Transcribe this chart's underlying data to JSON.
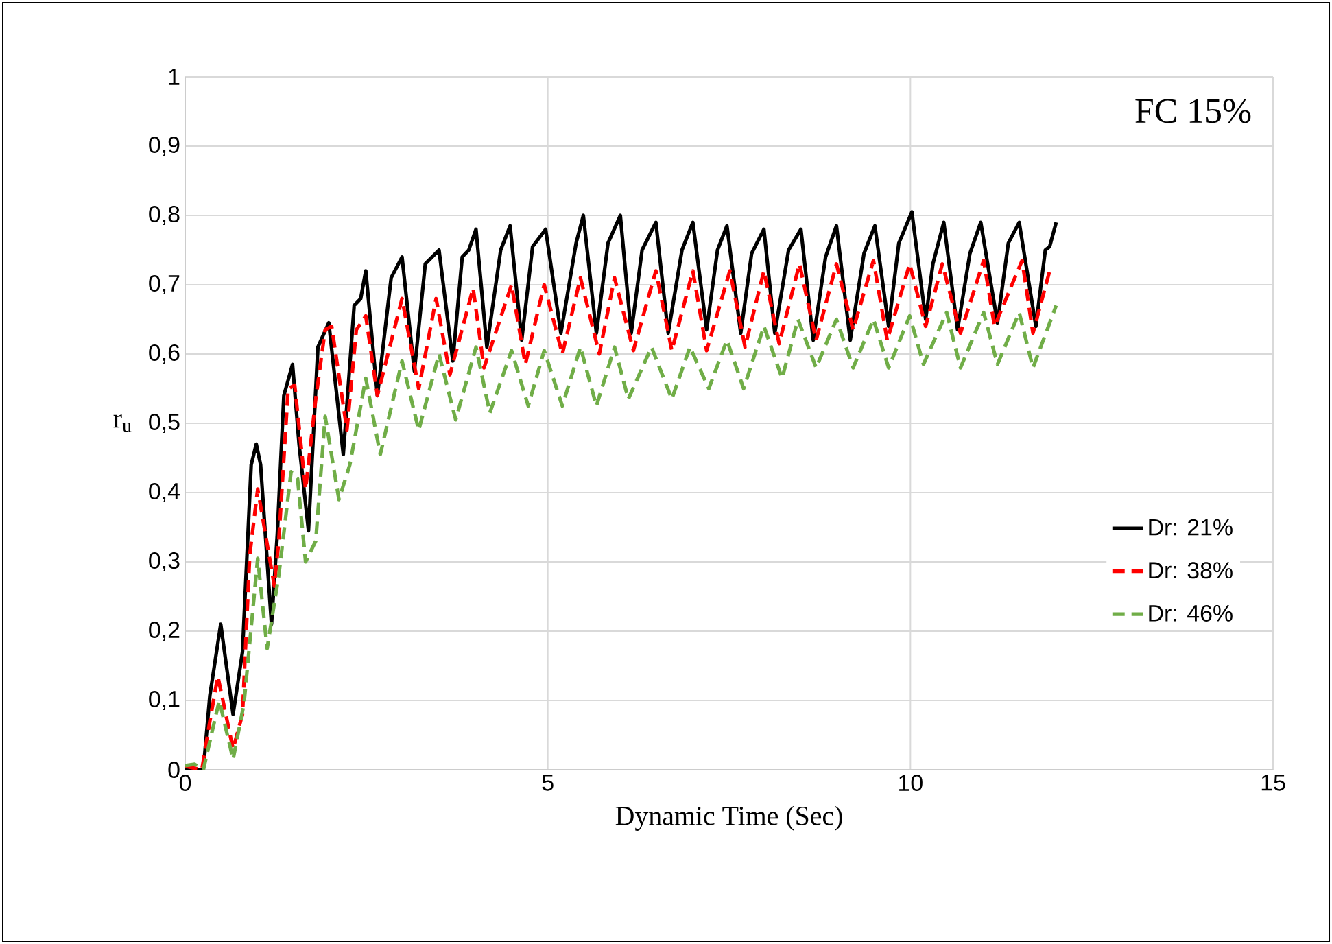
{
  "chart_data": {
    "type": "line",
    "title": "FC 15%",
    "xlabel": "Dynamic Time (Sec)",
    "ylabel": "r$_{u}$",
    "xlim": [
      0,
      15
    ],
    "ylim": [
      0,
      1
    ],
    "xticks": [
      0,
      5,
      10,
      15
    ],
    "yticks": [
      {
        "value": 0,
        "label": "0"
      },
      {
        "value": 0.1,
        "label": "0,1"
      },
      {
        "value": 0.2,
        "label": "0,2"
      },
      {
        "value": 0.3,
        "label": "0,3"
      },
      {
        "value": 0.4,
        "label": "0,4"
      },
      {
        "value": 0.5,
        "label": "0,5"
      },
      {
        "value": 0.6,
        "label": "0,6"
      },
      {
        "value": 0.7,
        "label": "0,7"
      },
      {
        "value": 0.8,
        "label": "0,8"
      },
      {
        "value": 0.9,
        "label": "0,9"
      },
      {
        "value": 1,
        "label": "1"
      }
    ],
    "grid": true,
    "legend": "right",
    "marker": "none",
    "series": [
      {
        "name": "Dr: 21%",
        "color": "#000000",
        "line_style": "solid",
        "x": [
          0,
          0.25,
          0.34,
          0.49,
          0.66,
          0.79,
          0.91,
          0.98,
          1.04,
          1.19,
          1.27,
          1.36,
          1.48,
          1.57,
          1.7,
          1.83,
          1.98,
          2.18,
          2.33,
          2.42,
          2.49,
          2.65,
          2.84,
          2.99,
          3.16,
          3.31,
          3.5,
          3.69,
          3.82,
          3.91,
          4.01,
          4.16,
          4.35,
          4.48,
          4.64,
          4.79,
          4.97,
          5.18,
          5.39,
          5.49,
          5.67,
          5.83,
          6.0,
          6.15,
          6.3,
          6.49,
          6.66,
          6.85,
          7.0,
          7.19,
          7.34,
          7.47,
          7.66,
          7.81,
          7.98,
          8.13,
          8.32,
          8.49,
          8.66,
          8.83,
          8.98,
          9.17,
          9.36,
          9.51,
          9.7,
          9.84,
          10.02,
          10.21,
          10.31,
          10.46,
          10.65,
          10.82,
          10.97,
          11.2,
          11.35,
          11.5,
          11.73,
          11.86,
          11.92,
          12.01
        ],
        "values": [
          0,
          0,
          0.107,
          0.21,
          0.08,
          0.17,
          0.44,
          0.47,
          0.44,
          0.21,
          0.34,
          0.54,
          0.585,
          0.47,
          0.345,
          0.61,
          0.645,
          0.455,
          0.67,
          0.68,
          0.72,
          0.54,
          0.71,
          0.74,
          0.575,
          0.73,
          0.75,
          0.59,
          0.74,
          0.75,
          0.78,
          0.61,
          0.75,
          0.785,
          0.62,
          0.755,
          0.78,
          0.63,
          0.76,
          0.8,
          0.63,
          0.76,
          0.8,
          0.63,
          0.75,
          0.79,
          0.63,
          0.75,
          0.79,
          0.635,
          0.75,
          0.785,
          0.63,
          0.745,
          0.78,
          0.63,
          0.75,
          0.78,
          0.62,
          0.74,
          0.785,
          0.62,
          0.745,
          0.785,
          0.64,
          0.76,
          0.805,
          0.65,
          0.73,
          0.79,
          0.635,
          0.745,
          0.79,
          0.645,
          0.76,
          0.79,
          0.64,
          0.75,
          0.755,
          0.79
        ]
      },
      {
        "name": "Dr: 38%",
        "color": "#ff0000",
        "line_style": "dashed",
        "x": [
          0,
          0.23,
          0.34,
          0.45,
          0.66,
          0.79,
          0.89,
          1.0,
          1.23,
          1.29,
          1.42,
          1.51,
          1.66,
          1.8,
          1.93,
          2.02,
          2.23,
          2.36,
          2.49,
          2.65,
          2.99,
          3.22,
          3.46,
          3.65,
          3.97,
          4.12,
          4.5,
          4.69,
          4.95,
          5.2,
          5.45,
          5.71,
          5.92,
          6.18,
          6.49,
          6.71,
          7.0,
          7.19,
          7.51,
          7.72,
          7.98,
          8.19,
          8.47,
          8.7,
          8.98,
          9.21,
          9.49,
          9.68,
          9.99,
          10.21,
          10.44,
          10.69,
          11.01,
          11.16,
          11.54,
          11.69,
          11.92
        ],
        "values": [
          0.005,
          0,
          0.07,
          0.135,
          0.03,
          0.08,
          0.31,
          0.405,
          0.265,
          0.33,
          0.55,
          0.555,
          0.405,
          0.535,
          0.635,
          0.64,
          0.49,
          0.635,
          0.655,
          0.54,
          0.68,
          0.55,
          0.68,
          0.57,
          0.695,
          0.58,
          0.7,
          0.585,
          0.7,
          0.6,
          0.71,
          0.6,
          0.71,
          0.605,
          0.72,
          0.605,
          0.72,
          0.605,
          0.72,
          0.61,
          0.72,
          0.615,
          0.73,
          0.62,
          0.73,
          0.635,
          0.735,
          0.62,
          0.73,
          0.64,
          0.73,
          0.63,
          0.735,
          0.64,
          0.735,
          0.63,
          0.72
        ]
      },
      {
        "name": "Dr: 46%",
        "color": "#70ad47",
        "line_style": "dashed",
        "x": [
          0,
          0.13,
          0.25,
          0.47,
          0.66,
          0.81,
          1.0,
          1.13,
          1.29,
          1.46,
          1.55,
          1.66,
          1.8,
          1.93,
          2.12,
          2.27,
          2.49,
          2.69,
          2.99,
          3.22,
          3.5,
          3.73,
          4.01,
          4.2,
          4.5,
          4.73,
          4.95,
          5.2,
          5.45,
          5.67,
          5.92,
          6.11,
          6.43,
          6.71,
          6.96,
          7.22,
          7.47,
          7.7,
          7.98,
          8.23,
          8.45,
          8.7,
          8.98,
          9.21,
          9.49,
          9.7,
          9.99,
          10.18,
          10.5,
          10.69,
          11.01,
          11.2,
          11.5,
          11.69,
          12.01
        ],
        "values": [
          0.006,
          0.008,
          0,
          0.1,
          0.015,
          0.095,
          0.305,
          0.175,
          0.28,
          0.43,
          0.42,
          0.3,
          0.33,
          0.51,
          0.39,
          0.44,
          0.565,
          0.455,
          0.59,
          0.49,
          0.6,
          0.505,
          0.61,
          0.515,
          0.605,
          0.525,
          0.605,
          0.525,
          0.61,
          0.525,
          0.61,
          0.535,
          0.61,
          0.535,
          0.61,
          0.55,
          0.62,
          0.55,
          0.64,
          0.565,
          0.65,
          0.58,
          0.65,
          0.58,
          0.65,
          0.58,
          0.655,
          0.585,
          0.66,
          0.58,
          0.66,
          0.585,
          0.66,
          0.58,
          0.67
        ]
      }
    ]
  }
}
